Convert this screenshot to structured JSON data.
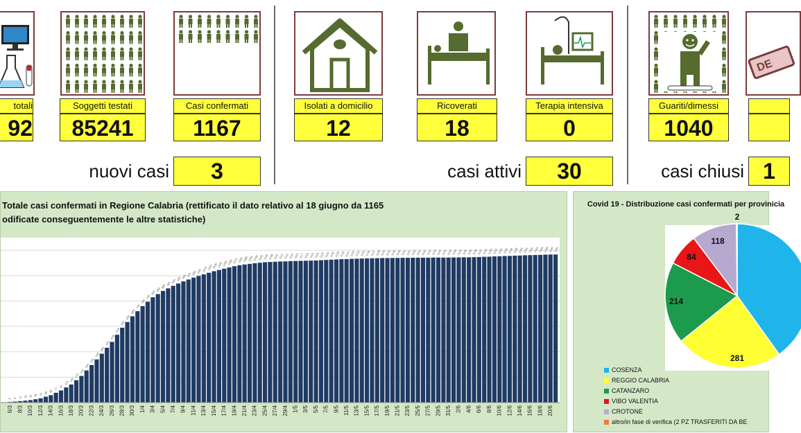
{
  "cards": [
    {
      "key": "totali",
      "label": "totali",
      "value": "92",
      "icon": "lab-computer-icon"
    },
    {
      "key": "testati",
      "label": "Soggetti testati",
      "value": "85241",
      "icon": "people-grid-icon"
    },
    {
      "key": "confermati",
      "label": "Casi confermati",
      "value": "1167",
      "icon": "virus-person-icon"
    },
    {
      "key": "isolati",
      "label": "Isolati a domicilio",
      "value": "12",
      "icon": "house-icon"
    },
    {
      "key": "ricoverati",
      "label": "Ricoverati",
      "value": "18",
      "icon": "hospital-bed-icon"
    },
    {
      "key": "terapia",
      "label": "Terapia intensiva",
      "value": "0",
      "icon": "icu-bed-icon"
    },
    {
      "key": "guariti",
      "label": "Guariti/dimessi",
      "value": "1040",
      "icon": "recovered-person-icon"
    },
    {
      "key": "deceduti",
      "label": "",
      "value": "",
      "icon": "deceased-stamp-icon"
    }
  ],
  "summaries": [
    {
      "label": "nuovi casi",
      "value": "3"
    },
    {
      "label": "casi attivi",
      "value": "30"
    },
    {
      "label": "casi chiusi",
      "value": "1"
    }
  ],
  "stamp_text": "DE",
  "colors": {
    "yellow": "#ffff3c",
    "panel_green": "#d4e8c8",
    "bar_navy": "#1f3b63",
    "icon_olive": "#556b2f",
    "cosenza": "#1fb5ea",
    "reggio": "#ffff33",
    "catanzaro": "#1c9b4c",
    "vibo": "#e81616",
    "crotone": "#b6a9cf",
    "altro": "#f07c32"
  },
  "chart_data": [
    {
      "type": "bar",
      "title": "Totale casi confermati in Regione Calabria (rettificato il dato relativo al  18 giugno da 1165",
      "subtitle": "odificate conseguentemente le altre statistiche)",
      "categories": [
        "6/3",
        "8/3",
        "10/3",
        "12/3",
        "14/3",
        "16/3",
        "18/3",
        "20/3",
        "22/3",
        "24/3",
        "26/3",
        "28/3",
        "30/3",
        "1/4",
        "3/4",
        "5/4",
        "7/4",
        "9/4",
        "11/4",
        "13/4",
        "15/4",
        "17/4",
        "19/4",
        "21/4",
        "23/4",
        "25/4",
        "27/4",
        "29/4",
        "1/5",
        "3/5",
        "5/5",
        "7/5",
        "9/5",
        "11/5",
        "13/5",
        "15/5",
        "17/5",
        "19/5",
        "21/5",
        "23/5",
        "25/5",
        "27/5",
        "29/5",
        "31/5",
        "2/6",
        "4/6",
        "6/6",
        "8/6",
        "10/6",
        "12/6",
        "14/6",
        "16/6",
        "18/6",
        "20/6"
      ],
      "values": [
        5,
        11,
        19,
        33,
        58,
        95,
        142,
        210,
        295,
        385,
        478,
        590,
        680,
        760,
        830,
        880,
        920,
        955,
        985,
        1010,
        1035,
        1055,
        1075,
        1088,
        1098,
        1106,
        1110,
        1113,
        1116,
        1118,
        1120,
        1124,
        1128,
        1131,
        1134,
        1136,
        1138,
        1139,
        1140,
        1141,
        1142,
        1142,
        1143,
        1143,
        1144,
        1145,
        1147,
        1150,
        1153,
        1156,
        1159,
        1162,
        1164,
        1167
      ],
      "ylim": [
        0,
        1300
      ],
      "grid": true
    },
    {
      "type": "pie",
      "title": "Covid 19 - Distribuzione casi confermati per provinicia",
      "slices": [
        {
          "name": "COSENZA",
          "value": 468,
          "color_key": "cosenza",
          "label": ""
        },
        {
          "name": "REGGIO CALABRIA",
          "value": 281,
          "color_key": "reggio",
          "label": "281"
        },
        {
          "name": "CATANZARO",
          "value": 214,
          "color_key": "catanzaro",
          "label": "214"
        },
        {
          "name": "VIBO VALENTIA",
          "value": 84,
          "color_key": "vibo",
          "label": "84"
        },
        {
          "name": "CROTONE",
          "value": 118,
          "color_key": "crotone",
          "label": "118"
        },
        {
          "name": "altro/in fase di verifica (2 PZ TRASFERITI DA BE",
          "value": 2,
          "color_key": "altro",
          "label": "2"
        }
      ]
    }
  ]
}
